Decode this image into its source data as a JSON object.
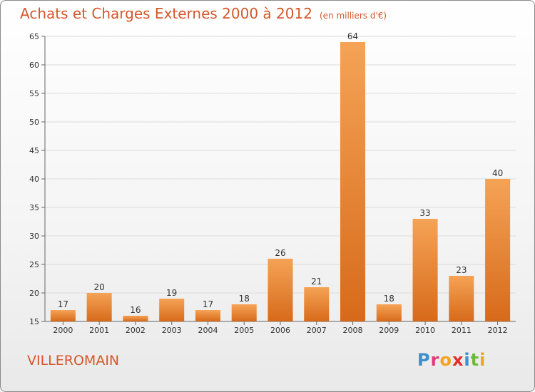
{
  "header": {
    "title": "Achats et Charges Externes 2000 à 2012",
    "unit": "(en milliers d'€)"
  },
  "footer": {
    "place": "VILLEROMAIN",
    "logo": "Proxiti",
    "logo_letters": [
      {
        "ch": "P",
        "color": "#3a8fd0"
      },
      {
        "ch": "r",
        "color": "#e23b7a"
      },
      {
        "ch": "o",
        "color": "#f2a51c"
      },
      {
        "ch": "x",
        "color": "#e2302b"
      },
      {
        "ch": "i",
        "color": "#3a8fd0"
      },
      {
        "ch": "t",
        "color": "#6cba3a"
      },
      {
        "ch": "i",
        "color": "#f2a51c"
      }
    ]
  },
  "colors": {
    "accent": "#d4572c",
    "bar_light": "#f5a356",
    "bar_dark": "#d76a1a"
  },
  "chart_data": {
    "type": "bar",
    "title": "Achats et Charges Externes 2000 à 2012",
    "subtitle": "(en milliers d'€)",
    "categories": [
      "2000",
      "2001",
      "2002",
      "2003",
      "2004",
      "2005",
      "2006",
      "2007",
      "2008",
      "2009",
      "2010",
      "2011",
      "2012"
    ],
    "values": [
      17,
      20,
      16,
      19,
      17,
      18,
      26,
      21,
      64,
      18,
      33,
      23,
      40
    ],
    "ylim": [
      15,
      65
    ],
    "yticks": [
      15,
      20,
      25,
      30,
      35,
      40,
      45,
      50,
      55,
      60,
      65
    ],
    "grid": true,
    "legend": "none"
  }
}
